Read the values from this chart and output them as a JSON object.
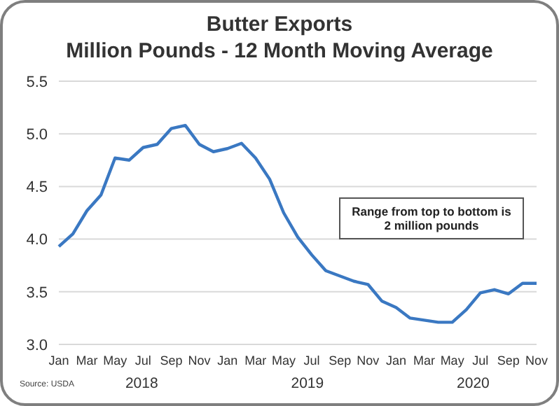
{
  "chart_data": {
    "type": "line",
    "title": "Butter Exports",
    "subtitle": "Million Pounds - 12 Month Moving Average",
    "categories": [
      "Jan",
      null,
      "Mar",
      null,
      "May",
      null,
      "Jul",
      null,
      "Sep",
      null,
      "Nov",
      null,
      "Jan",
      null,
      "Mar",
      null,
      "May",
      null,
      "Jul",
      null,
      "Sep",
      null,
      "Nov",
      null,
      "Jan",
      null,
      "Mar",
      null,
      "May",
      null,
      "Jul",
      null,
      "Sep",
      null,
      "Nov"
    ],
    "series": [
      {
        "color": "#3a78c2",
        "values": [
          3.93,
          4.05,
          4.27,
          4.42,
          4.77,
          4.75,
          4.87,
          4.9,
          5.05,
          5.08,
          4.9,
          4.83,
          4.86,
          4.91,
          4.77,
          4.57,
          4.25,
          4.02,
          3.85,
          3.7,
          3.65,
          3.6,
          3.57,
          3.41,
          3.35,
          3.25,
          3.23,
          3.21,
          3.21,
          3.33,
          3.49,
          3.52,
          3.48,
          3.58,
          3.58
        ]
      }
    ],
    "ylim": [
      3.0,
      5.5
    ],
    "yticks": [
      {
        "value": 3,
        "label": "3.0"
      },
      3.5,
      {
        "value": 4,
        "label": "4.0"
      },
      4.5,
      {
        "value": 5,
        "label": "5.0"
      },
      5.5
    ],
    "grid": "y",
    "marker": "none",
    "line_style": "solid",
    "annotations": [
      "Range from top to bottom is\n2 million pounds",
      "2018",
      "2019",
      "2020",
      "Source: USDA"
    ]
  }
}
